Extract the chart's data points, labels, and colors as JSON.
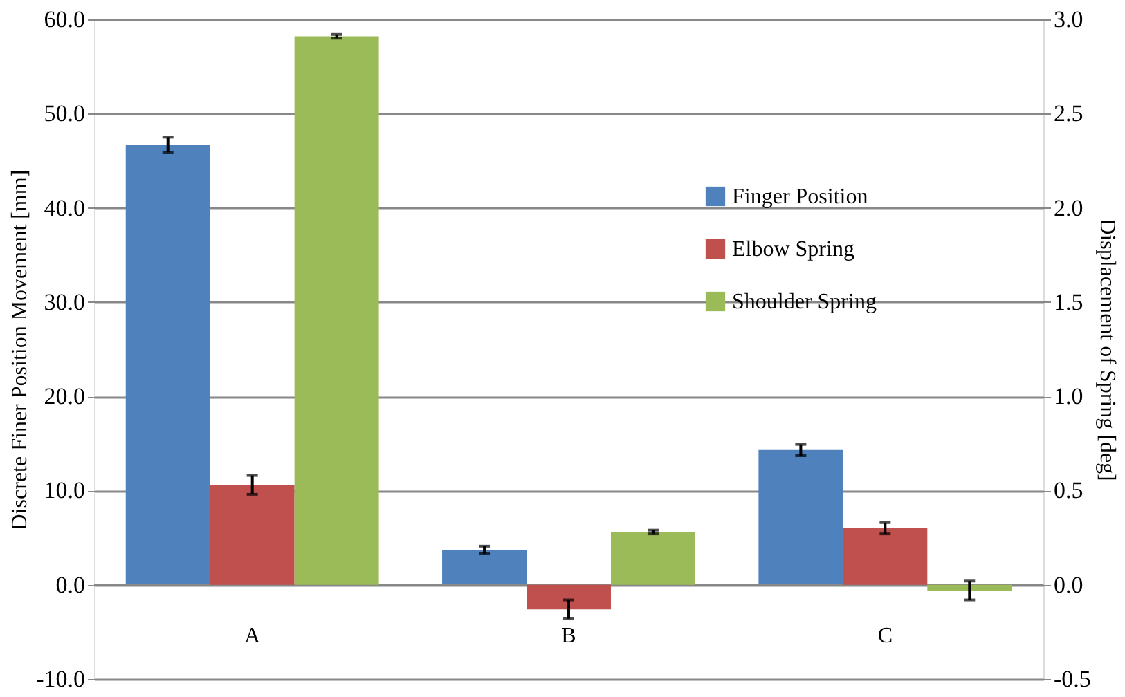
{
  "chart_data": {
    "type": "bar",
    "xlabel": null,
    "ylabel": "Discrete Finer Position Movement [mm]",
    "y2label": "Displacement of Spring [deg]",
    "categories": [
      "A",
      "B",
      "C"
    ],
    "series": [
      {
        "name": "Finger Position",
        "color": "#4f81bd",
        "values": [
          46.7,
          3.7,
          14.3
        ],
        "errors": [
          0.8,
          0.4,
          0.6
        ]
      },
      {
        "name": "Elbow Spring",
        "color": "#c0504d",
        "axis": "y2",
        "values": [
          0.53,
          -0.13,
          0.3
        ],
        "errors": [
          0.05,
          0.05,
          0.03
        ]
      },
      {
        "name": "Shoulder Spring",
        "color": "#9bbb59",
        "axis": "y2",
        "values": [
          2.91,
          0.28,
          -0.03
        ],
        "errors": [
          0.01,
          0.01,
          0.05
        ]
      }
    ],
    "ylim": [
      -10,
      60
    ],
    "yticks": [
      {
        "value": -10,
        "label": "-10.0"
      },
      {
        "value": 0,
        "label": "0.0"
      },
      {
        "value": 10,
        "label": "10.0"
      },
      {
        "value": 20,
        "label": "20.0"
      },
      {
        "value": 30,
        "label": "30.0"
      },
      {
        "value": 40,
        "label": "40.0"
      },
      {
        "value": 50,
        "label": "50.0"
      },
      {
        "value": 60,
        "label": "60.0"
      }
    ],
    "y2lim": [
      -0.5,
      3.0
    ],
    "y2ticks": [
      {
        "value": -0.5,
        "label": "-0.5"
      },
      {
        "value": 0,
        "label": "0.0"
      },
      {
        "value": 0.5,
        "label": "0.5"
      },
      {
        "value": 1.0,
        "label": "1.0"
      },
      {
        "value": 1.5,
        "label": "1.5"
      },
      {
        "value": 2.0,
        "label": "2.0"
      },
      {
        "value": 2.5,
        "label": "2.5"
      },
      {
        "value": 3.0,
        "label": "3.0"
      }
    ],
    "grid": "y",
    "legend": "top right"
  }
}
